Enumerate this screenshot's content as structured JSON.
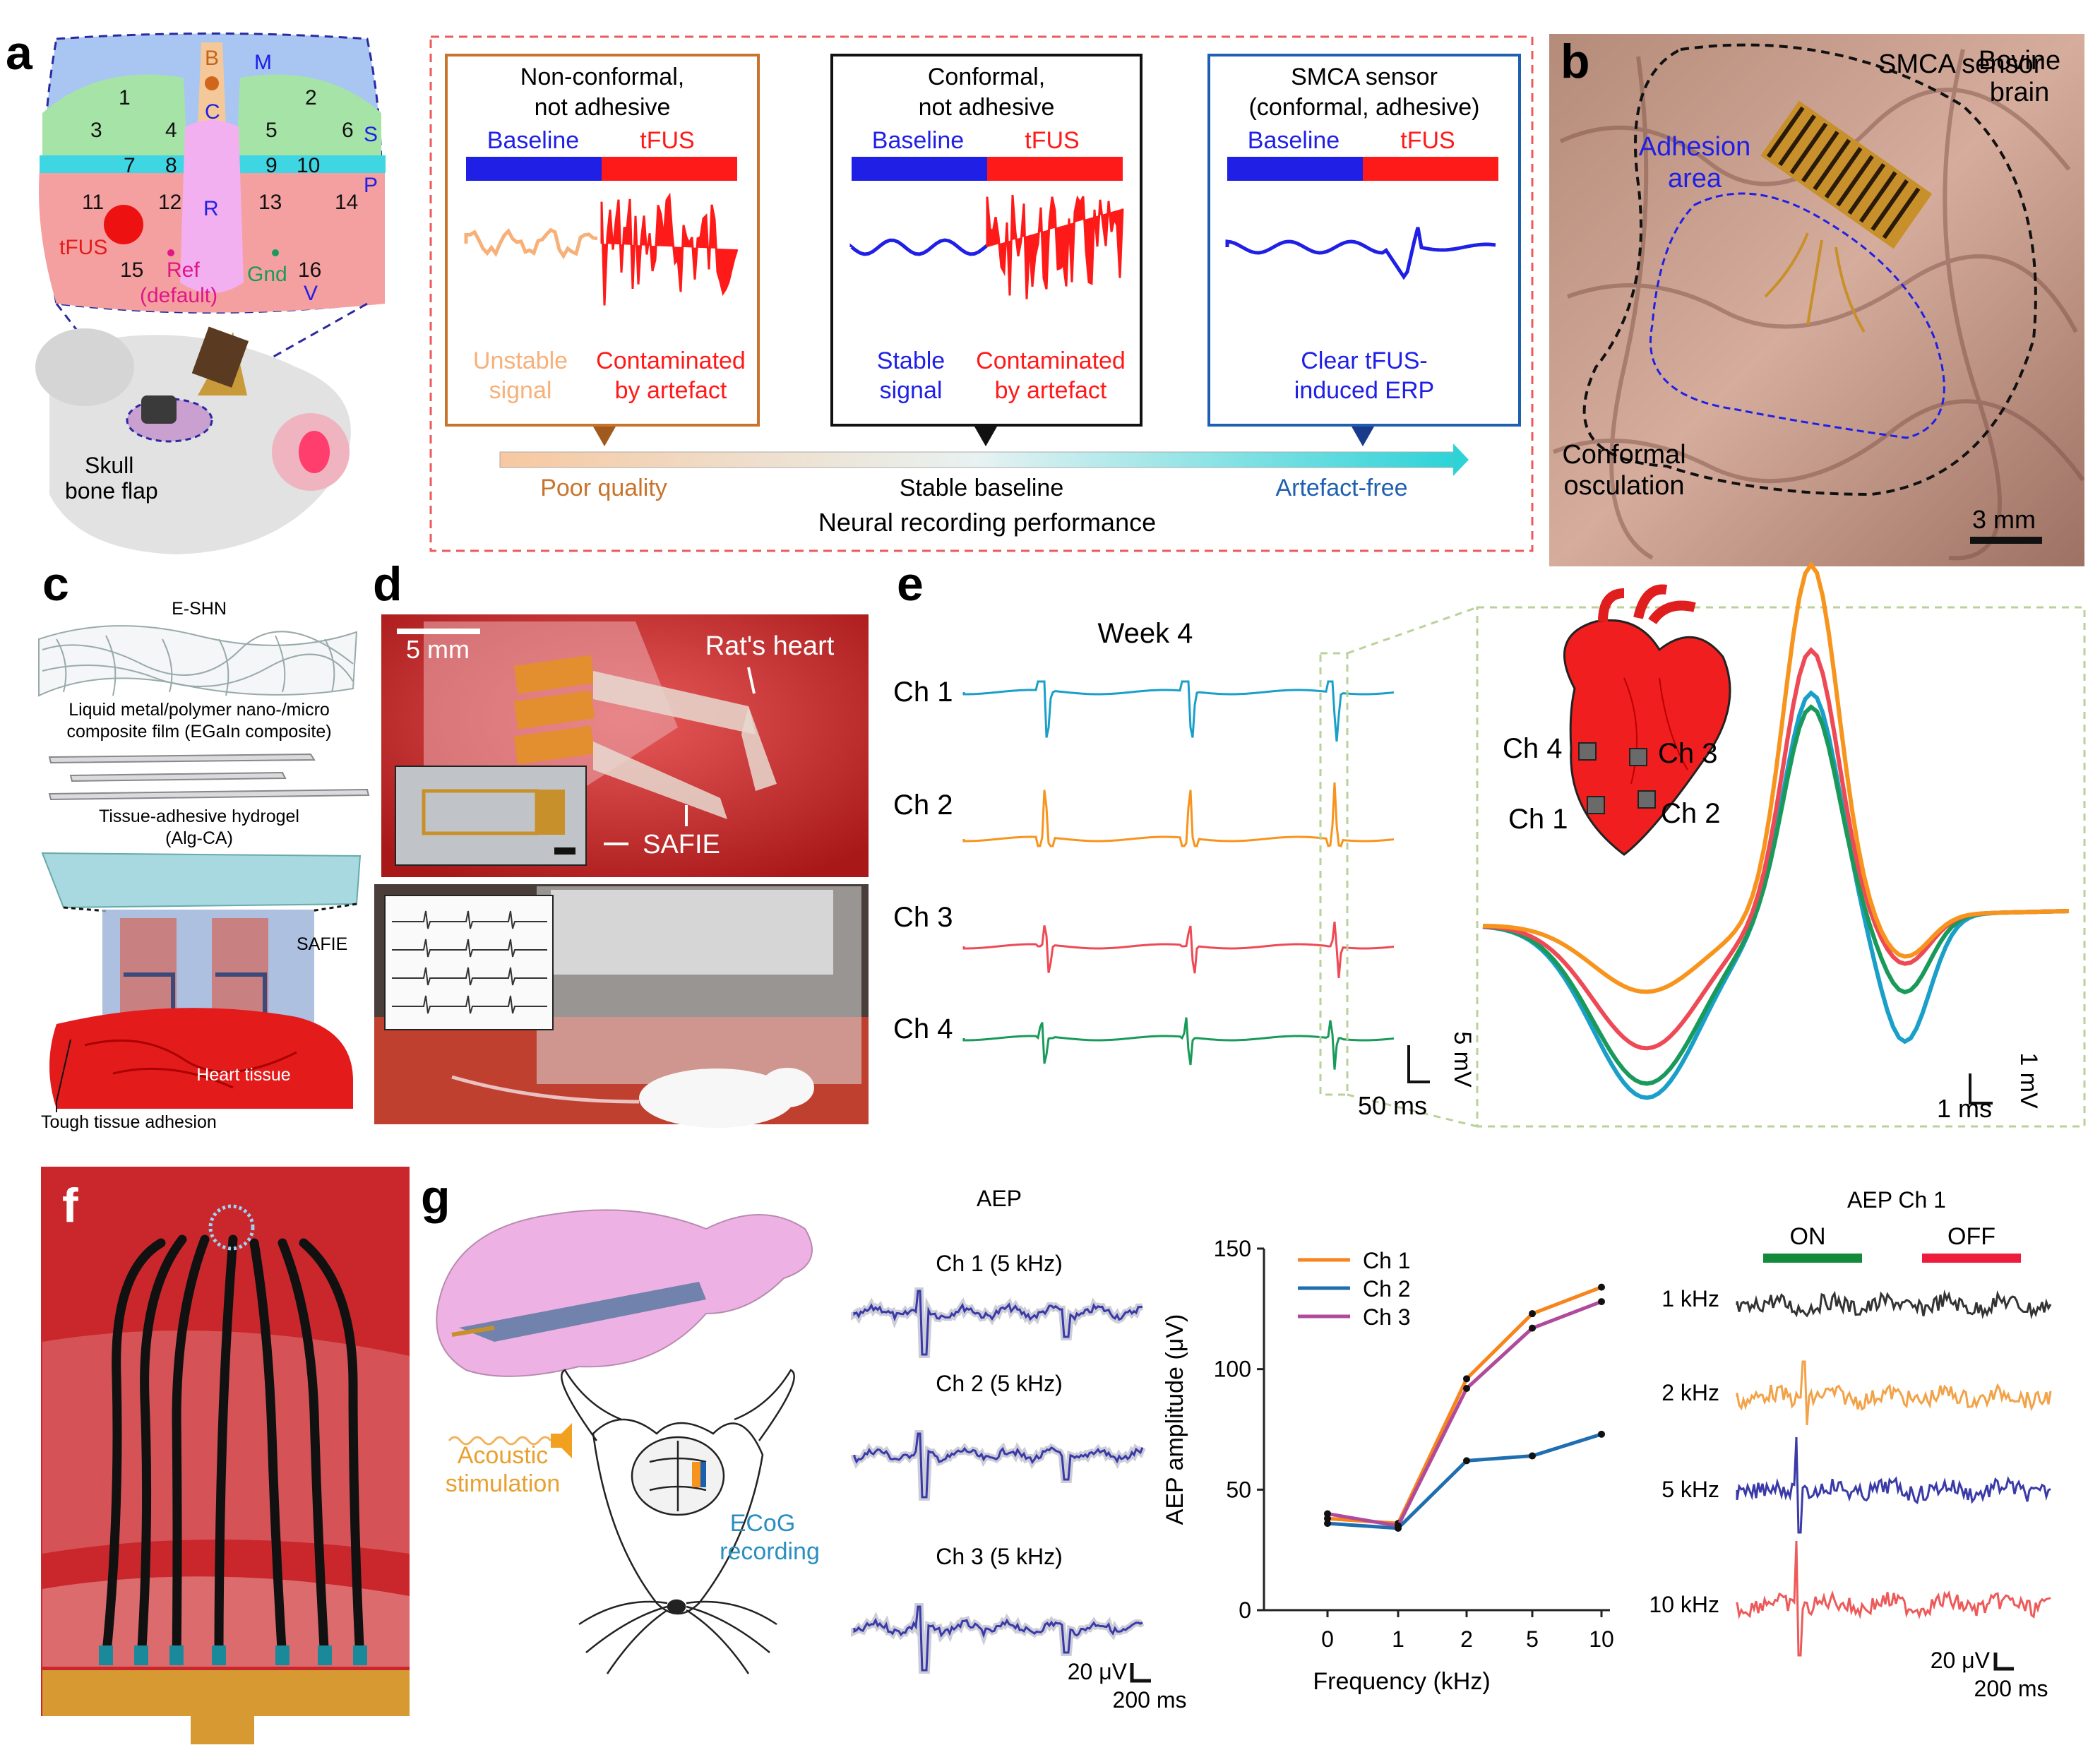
{
  "panel_letters": {
    "a": "a",
    "b": "b",
    "c": "c",
    "d": "d",
    "e": "e",
    "f": "f",
    "g": "g"
  },
  "colors": {
    "baseline": "#1f1fe6",
    "tfus": "#ff1a1a",
    "poor": "#c8742c",
    "stable": "#111111",
    "smca": "#1f5fb0",
    "ch1_teal": "#1a9fc9",
    "ch2_orange": "#f7941d",
    "ch3_red": "#ee4a55",
    "ch4_green": "#1a9a5a",
    "aep_ch1": "#f7841d",
    "aep_ch2": "#1f6fb0",
    "aep_ch3": "#b04a9a",
    "on": "#138a3a",
    "off": "#ee1c3c"
  },
  "a": {
    "brain_regions": {
      "B": "B",
      "C": "C",
      "M": "M",
      "R": "R",
      "S": "S",
      "P": "P",
      "V": "V"
    },
    "electrodes": [
      "1",
      "2",
      "3",
      "4",
      "5",
      "6",
      "7",
      "8",
      "9",
      "10",
      "11",
      "12",
      "13",
      "14",
      "15",
      "16"
    ],
    "labels": {
      "tfus": "tFUS",
      "ref": "Ref",
      "ref_default": "(default)",
      "gnd": "Gnd",
      "skull": "Skull",
      "bone_flap": "bone flap"
    },
    "boxes": [
      {
        "title1": "Non-conformal,",
        "title2": "not adhesive",
        "baseline": "Baseline",
        "tfus": "tFUS",
        "left1": "Unstable",
        "left2": "signal",
        "right1": "Contaminated",
        "right2": "by artefact"
      },
      {
        "title1": "Conformal,",
        "title2": "not adhesive",
        "baseline": "Baseline",
        "tfus": "tFUS",
        "left1": "Stable",
        "left2": "signal",
        "right1": "Contaminated",
        "right2": "by artefact"
      },
      {
        "title1": "SMCA sensor",
        "title2": "(conformal, adhesive)",
        "baseline": "Baseline",
        "tfus": "tFUS",
        "mid1": "Clear tFUS-",
        "mid2": "induced ERP"
      }
    ],
    "scale": {
      "poor": "Poor quality",
      "stable": "Stable baseline",
      "free": "Artefact-free",
      "caption": "Neural recording  performance"
    }
  },
  "b": {
    "smca": "SMCA sensor",
    "bovine1": "Bovine",
    "bovine2": "brain",
    "adhesion1": "Adhesion",
    "adhesion2": "area",
    "conformal1": "Conformal",
    "conformal2": "osculation",
    "scale": "3 mm"
  },
  "c": {
    "eshn": "E-SHN",
    "lm1": "Liquid metal/polymer nano-/micro",
    "lm2": "composite film (EGaIn composite)",
    "hydro1": "Tissue-adhesive hydrogel",
    "hydro2": "(Alg-CA)",
    "safie": "SAFIE",
    "heart": "Heart tissue",
    "adhesion": "Tough tissue adhesion"
  },
  "d": {
    "scale": "5 mm",
    "heart": "Rat's heart",
    "safie": "SAFIE"
  },
  "e": {
    "week": "Week 4",
    "channels": [
      "Ch 1",
      "Ch 2",
      "Ch 3",
      "Ch 4"
    ],
    "scale_v": "5 mV",
    "scale_t": "50 ms",
    "zoom_v": "1 mV",
    "zoom_t": "1 ms",
    "heart_channels": [
      "Ch 4",
      "Ch 3",
      "Ch 1",
      "Ch 2"
    ]
  },
  "g": {
    "acoustic1": "Acoustic",
    "acoustic2": "stimulation",
    "ecog1": "ECoG",
    "ecog2": "recording",
    "aep_title": "AEP",
    "aep_traces": [
      "Ch 1 (5 kHz)",
      "Ch 2 (5 kHz)",
      "Ch 3 (5 kHz)"
    ],
    "aep_scale_v": "20 μV",
    "aep_scale_t": "200 ms",
    "ch1_title": "AEP Ch 1",
    "on": "ON",
    "off": "OFF",
    "freqs": [
      "1 kHz",
      "2 kHz",
      "5 kHz",
      "10 kHz"
    ],
    "ch1_scale_v": "20 μV",
    "ch1_scale_t": "200 ms"
  },
  "chart_data": {
    "type": "line",
    "xlabel": "Frequency (kHz)",
    "ylabel": "AEP amplitude (μV)",
    "categories": [
      "0",
      "1",
      "2",
      "5",
      "10"
    ],
    "ylim": [
      0,
      150
    ],
    "yticks": [
      0,
      50,
      100,
      150
    ],
    "series": [
      {
        "name": "Ch 1",
        "values": [
          38,
          36,
          96,
          123,
          134
        ]
      },
      {
        "name": "Ch 2",
        "values": [
          36,
          34,
          62,
          64,
          73
        ]
      },
      {
        "name": "Ch 3",
        "values": [
          40,
          35,
          92,
          117,
          128
        ]
      }
    ],
    "legend": "top-left"
  }
}
